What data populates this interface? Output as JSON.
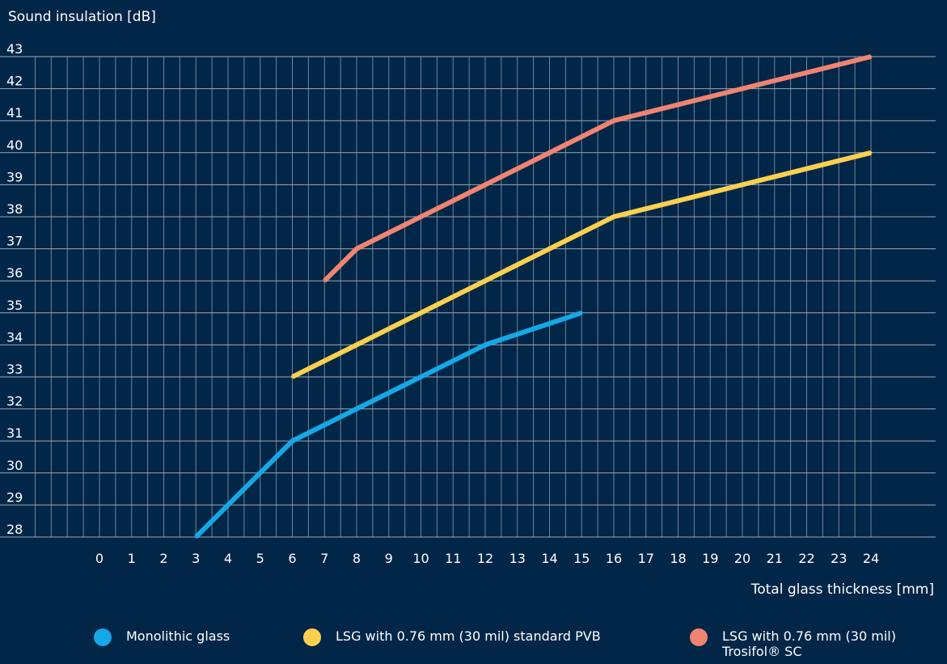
{
  "chart_data": {
    "type": "line",
    "ylabel": "Sound insulation [dB]",
    "xlabel": "Total glass thickness [mm]",
    "xlim": [
      0,
      24
    ],
    "ylim": [
      28,
      43
    ],
    "x_ticks": [
      0,
      1,
      2,
      3,
      4,
      5,
      6,
      7,
      8,
      9,
      10,
      11,
      12,
      13,
      14,
      15,
      16,
      17,
      18,
      19,
      20,
      21,
      22,
      23,
      24
    ],
    "y_ticks": [
      28,
      29,
      30,
      31,
      32,
      33,
      34,
      35,
      36,
      37,
      38,
      39,
      40,
      41,
      42,
      43
    ],
    "grid": true,
    "legend_position": "bottom",
    "series": [
      {
        "name": "Monolithic glass",
        "color": "#14a9e6",
        "points": [
          [
            3,
            28
          ],
          [
            4,
            29
          ],
          [
            5,
            30
          ],
          [
            6,
            31
          ],
          [
            8,
            32
          ],
          [
            10,
            33
          ],
          [
            12,
            34
          ],
          [
            15,
            35
          ]
        ]
      },
      {
        "name": "LSG with 0.76 mm (30 mil) standard PVB",
        "color": "#fcd04f",
        "points": [
          [
            6,
            33
          ],
          [
            8,
            34
          ],
          [
            10,
            35
          ],
          [
            12,
            36
          ],
          [
            16,
            38
          ],
          [
            20,
            39
          ],
          [
            24,
            40
          ]
        ]
      },
      {
        "name": "LSG with 0.76 mm (30 mil) Trosifol® SC",
        "color": "#f08470",
        "points": [
          [
            7,
            36
          ],
          [
            8,
            37
          ],
          [
            10,
            38
          ],
          [
            12,
            39
          ],
          [
            16,
            41
          ],
          [
            20,
            42
          ],
          [
            24,
            43
          ]
        ]
      }
    ]
  }
}
